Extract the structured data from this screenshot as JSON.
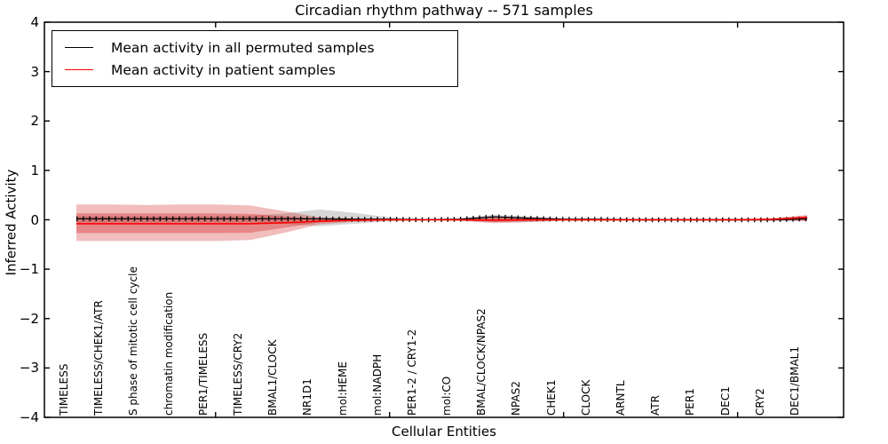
{
  "title": "Circadian rhythm pathway -- 571 samples",
  "legend": {
    "entries": [
      {
        "label": "Mean activity in all permuted samples",
        "color": "#000000"
      },
      {
        "label": "Mean activity in patient samples",
        "color": "#ff0000"
      }
    ],
    "position": "upper-left"
  },
  "chart_data": {
    "type": "line",
    "title": "Circadian rhythm pathway -- 571 samples",
    "xlabel": "Cellular Entities",
    "ylabel": "Inferred Activity",
    "ylim": [
      -4,
      4
    ],
    "yticks": [
      -4,
      -3,
      -2,
      -1,
      0,
      1,
      2,
      3,
      4
    ],
    "xtick_mark_category_indices": [
      4,
      9,
      14,
      19
    ],
    "grid": false,
    "legend_position": "upper-left",
    "categories": [
      "TIMELESS",
      "TIMELESS/CHEK1/ATR",
      "S phase of mitotic cell cycle",
      "chromatin modification",
      "PER1/TIMELESS",
      "TIMELESS/CRY2",
      "BMAL1/CLOCK",
      "NR1D1",
      "mol:HEME",
      "mol:NADPH",
      "PER1-2 / CRY1-2",
      "mol:CO",
      "BMAL/CLOCK/NPAS2",
      "NPAS2",
      "CHEK1",
      "CLOCK",
      "ARNTL",
      "ATR",
      "PER1",
      "DEC1",
      "CRY2",
      "DEC1/BMAL1"
    ],
    "series": [
      {
        "name": "Mean activity in all permuted samples",
        "color": "#000000",
        "style": "solid-with-tick-markers",
        "values": [
          0.02,
          0.02,
          0.02,
          0.02,
          0.02,
          0.02,
          0.02,
          0.02,
          0.01,
          0.01,
          0.0,
          0.01,
          0.06,
          0.03,
          0.01,
          0.01,
          0.0,
          0.0,
          0.0,
          0.0,
          0.0,
          0.02
        ]
      },
      {
        "name": "Mean activity in patient samples",
        "color": "#ff0000",
        "style": "solid",
        "values": [
          -0.08,
          -0.08,
          -0.08,
          -0.08,
          -0.08,
          -0.08,
          -0.06,
          -0.03,
          -0.01,
          0.0,
          0.0,
          0.0,
          -0.01,
          0.0,
          0.0,
          0.0,
          0.0,
          0.0,
          0.0,
          0.0,
          0.01,
          0.05
        ]
      }
    ],
    "bands": [
      {
        "name": "permuted-samples-range",
        "color": "rgba(90,90,90,0.25)",
        "hi": [
          0.07,
          0.07,
          0.07,
          0.07,
          0.07,
          0.08,
          0.13,
          0.21,
          0.14,
          0.05,
          0.02,
          0.03,
          0.1,
          0.07,
          0.03,
          0.02,
          0.02,
          0.02,
          0.02,
          0.02,
          0.02,
          0.03
        ],
        "lo": [
          -0.05,
          -0.05,
          -0.05,
          -0.05,
          -0.05,
          -0.05,
          -0.08,
          -0.13,
          -0.08,
          -0.03,
          -0.02,
          -0.02,
          -0.05,
          -0.04,
          -0.02,
          -0.02,
          -0.02,
          -0.02,
          -0.02,
          -0.02,
          -0.02,
          -0.02
        ]
      },
      {
        "name": "patient-samples-outer-range",
        "color": "rgba(205,10,10,0.27)",
        "hi": [
          0.31,
          0.31,
          0.3,
          0.31,
          0.31,
          0.29,
          0.17,
          0.05,
          0.03,
          0.02,
          0.01,
          0.02,
          0.07,
          0.05,
          0.02,
          0.02,
          0.02,
          0.02,
          0.02,
          0.02,
          0.03,
          0.1
        ],
        "lo": [
          -0.43,
          -0.43,
          -0.43,
          -0.43,
          -0.43,
          -0.41,
          -0.26,
          -0.09,
          -0.04,
          -0.02,
          -0.01,
          -0.02,
          -0.07,
          -0.05,
          -0.02,
          -0.02,
          -0.02,
          -0.02,
          -0.02,
          -0.02,
          -0.02,
          -0.03
        ]
      },
      {
        "name": "patient-samples-inner-range",
        "color": "rgba(205,10,10,0.30)",
        "hi": [
          0.13,
          0.13,
          0.13,
          0.13,
          0.13,
          0.12,
          0.07,
          0.02,
          0.01,
          0.01,
          0.01,
          0.01,
          0.04,
          0.03,
          0.01,
          0.01,
          0.01,
          0.01,
          0.01,
          0.01,
          0.02,
          0.07
        ],
        "lo": [
          -0.27,
          -0.27,
          -0.27,
          -0.27,
          -0.27,
          -0.26,
          -0.16,
          -0.05,
          -0.02,
          -0.01,
          -0.01,
          -0.01,
          -0.04,
          -0.03,
          -0.01,
          -0.01,
          -0.01,
          -0.01,
          -0.01,
          -0.01,
          -0.01,
          -0.01
        ]
      }
    ]
  }
}
